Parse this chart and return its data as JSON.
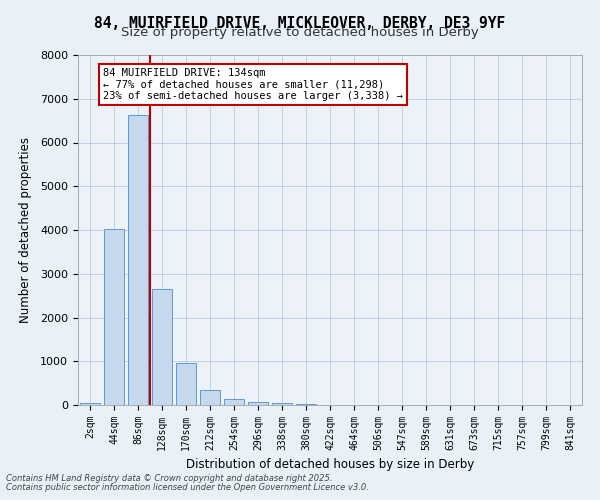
{
  "title_line1": "84, MUIRFIELD DRIVE, MICKLEOVER, DERBY, DE3 9YF",
  "title_line2": "Size of property relative to detached houses in Derby",
  "xlabel": "Distribution of detached houses by size in Derby",
  "ylabel": "Number of detached properties",
  "categories": [
    "2sqm",
    "44sqm",
    "86sqm",
    "128sqm",
    "170sqm",
    "212sqm",
    "254sqm",
    "296sqm",
    "338sqm",
    "380sqm",
    "422sqm",
    "464sqm",
    "506sqm",
    "547sqm",
    "589sqm",
    "631sqm",
    "673sqm",
    "715sqm",
    "757sqm",
    "799sqm",
    "841sqm"
  ],
  "values": [
    50,
    4020,
    6620,
    2650,
    970,
    350,
    135,
    75,
    50,
    25,
    10,
    5,
    3,
    2,
    1,
    1,
    0,
    0,
    0,
    0,
    0
  ],
  "bar_color": "#c5d8ed",
  "bar_edge_color": "#5b9bd5",
  "highlight_index": 3,
  "highlight_color": "#c00000",
  "annotation_text": "84 MUIRFIELD DRIVE: 134sqm\n← 77% of detached houses are smaller (11,298)\n23% of semi-detached houses are larger (3,338) →",
  "annotation_box_color": "#ffffff",
  "annotation_box_edge": "#c00000",
  "ylim": [
    0,
    8000
  ],
  "yticks": [
    0,
    1000,
    2000,
    3000,
    4000,
    5000,
    6000,
    7000,
    8000
  ],
  "footer_line1": "Contains HM Land Registry data © Crown copyright and database right 2025.",
  "footer_line2": "Contains public sector information licensed under the Open Government Licence v3.0.",
  "bg_color": "#e8f0f8",
  "plot_bg_color": "#edf2f9"
}
